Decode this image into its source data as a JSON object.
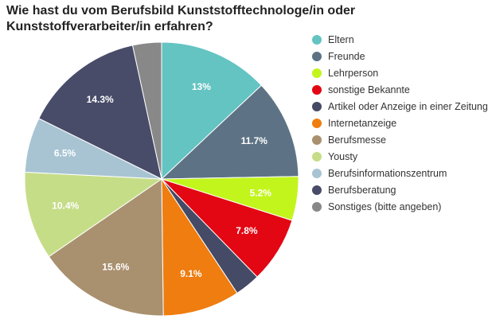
{
  "chart_data": {
    "type": "pie",
    "title": "Wie hast du vom Berufsbild Kunststofftechnologe/in oder Kunststoffverarbeiter/in erfahren?",
    "slices": [
      {
        "label": "Eltern",
        "value": 13,
        "value_label": "13%",
        "color": "#63c4c2"
      },
      {
        "label": "Freunde",
        "value": 11.7,
        "value_label": "11.7%",
        "color": "#5d7385"
      },
      {
        "label": "Lehrperson",
        "value": 5.2,
        "value_label": "5.2%",
        "color": "#c2f51c"
      },
      {
        "label": "sonstige Bekannte",
        "value": 7.8,
        "value_label": "7.8%",
        "color": "#e30613"
      },
      {
        "label": "Artikel oder Anzeige in einer Zeitung",
        "value": 3.0,
        "value_label": "",
        "color": "#454a66"
      },
      {
        "label": "Internetanzeige",
        "value": 9.1,
        "value_label": "9.1%",
        "color": "#ef7d0f"
      },
      {
        "label": "Berufsmesse",
        "value": 15.6,
        "value_label": "15.6%",
        "color": "#a9906f"
      },
      {
        "label": "Yousty",
        "value": 10.4,
        "value_label": "10.4%",
        "color": "#c6dd88"
      },
      {
        "label": "Berufsinformationszentrum",
        "value": 6.5,
        "value_label": "6.5%",
        "color": "#a8c4d3"
      },
      {
        "label": "Berufsberatung",
        "value": 14.3,
        "value_label": "14.3%",
        "color": "#484c69"
      },
      {
        "label": "Sonstiges (bitte angeben)",
        "value": 3.4,
        "value_label": "",
        "color": "#888888"
      }
    ],
    "legend_position": "right"
  }
}
